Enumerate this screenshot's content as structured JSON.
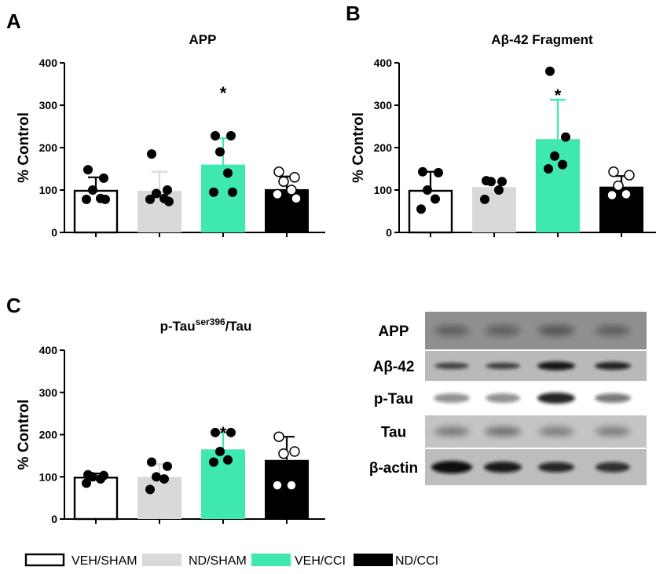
{
  "colors": {
    "VEH/SHAM": "#ffffff",
    "ND/SHAM": "#d9d9d9",
    "VEH/CCI": "#3ee8b0",
    "ND/CCI": "#000000"
  },
  "chart_data": [
    {
      "panel": "A",
      "type": "bar",
      "title": "APP",
      "title_sup": "",
      "title_suffix": "",
      "ylabel": "% Control",
      "ylim": [
        0,
        400
      ],
      "yticks": [
        "0",
        "100",
        "200",
        "300",
        "400"
      ],
      "categories": [
        "VEH/SHAM",
        "ND/SHAM",
        "VEH/CCI",
        "ND/CCI"
      ],
      "values": [
        100,
        98,
        160,
        102
      ],
      "errors": [
        30,
        45,
        62,
        30
      ],
      "significance": [
        "",
        "",
        "*",
        ""
      ],
      "points": [
        [
          148,
          128,
          100,
          80,
          78,
          78
        ],
        [
          185,
          100,
          92,
          80,
          78,
          73
        ],
        [
          228,
          228,
          190,
          140,
          95,
          95
        ],
        [
          143,
          130,
          120,
          100,
          90,
          80
        ]
      ]
    },
    {
      "panel": "B",
      "type": "bar",
      "title": "Aβ-42 Fragment",
      "title_sup": "",
      "title_suffix": "",
      "ylabel": "% Control",
      "ylim": [
        0,
        400
      ],
      "yticks": [
        "0",
        "100",
        "200",
        "300",
        "400"
      ],
      "categories": [
        "VEH/SHAM",
        "ND/SHAM",
        "VEH/CCI",
        "ND/CCI"
      ],
      "values": [
        100,
        107,
        220,
        108
      ],
      "errors": [
        43,
        12,
        93,
        25
      ],
      "significance": [
        "",
        "",
        "*",
        ""
      ],
      "points": [
        [
          143,
          141,
          100,
          79,
          55
        ],
        [
          122,
          120,
          120,
          100,
          78
        ],
        [
          380,
          225,
          180,
          160,
          150
        ],
        [
          143,
          135,
          110,
          90,
          88
        ]
      ]
    },
    {
      "panel": "C",
      "type": "bar",
      "title": "p-Tau",
      "title_sup": "ser396",
      "title_suffix": "/Tau",
      "ylabel": "% Control",
      "ylim": [
        0,
        400
      ],
      "yticks": [
        "0",
        "100",
        "200",
        "300",
        "400"
      ],
      "categories": [
        "VEH/SHAM",
        "ND/SHAM",
        "VEH/CCI",
        "ND/CCI"
      ],
      "values": [
        100,
        100,
        165,
        140
      ],
      "errors": [
        8,
        30,
        40,
        55
      ],
      "significance": [
        "",
        "",
        "*",
        ""
      ],
      "points": [
        [
          105,
          103,
          100,
          95,
          85
        ],
        [
          135,
          125,
          100,
          95,
          70
        ],
        [
          205,
          205,
          160,
          140,
          135
        ],
        [
          195,
          160,
          155,
          80,
          80
        ]
      ]
    }
  ],
  "blot": {
    "rows": [
      "APP",
      "Aβ-42",
      "p-Tau",
      "Tau",
      "β-actin"
    ]
  },
  "legend": [
    "VEH/SHAM",
    "ND/SHAM",
    "VEH/CCI",
    "ND/CCI"
  ]
}
